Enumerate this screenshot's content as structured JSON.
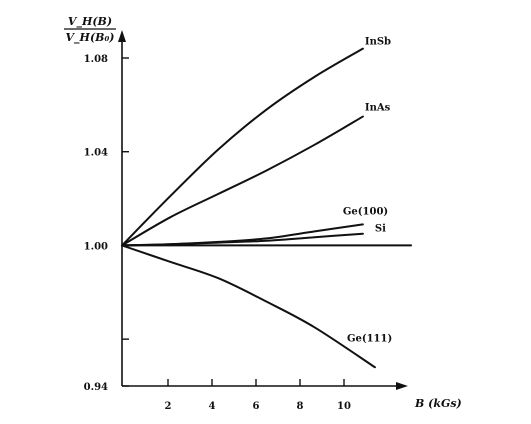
{
  "chart_data": {
    "type": "line",
    "title": "",
    "ylabel_numerator": "V_H(B)",
    "ylabel_denominator": "V_H(B₀)",
    "xlabel": "B (kGs)",
    "xlim": [
      0,
      12
    ],
    "ylim": [
      0.94,
      1.09
    ],
    "x_ticks": [
      2,
      4,
      6,
      8,
      10
    ],
    "x_tick_labels": [
      "2",
      "4",
      "6",
      "8",
      "10"
    ],
    "y_ticks": [
      0.94,
      0.96,
      1.0,
      1.04,
      1.08
    ],
    "y_tick_labels": [
      "0.94",
      "",
      "1.00",
      "1.04",
      "1.08"
    ],
    "grid": false,
    "series": [
      {
        "name": "InSb",
        "x": [
          0,
          2,
          4,
          6,
          8,
          10
        ],
        "y": [
          1.0,
          1.021,
          1.041,
          1.058,
          1.072,
          1.084
        ]
      },
      {
        "name": "InAs",
        "x": [
          0,
          2,
          4,
          6,
          8,
          10
        ],
        "y": [
          1.0,
          1.012,
          1.022,
          1.032,
          1.043,
          1.055
        ]
      },
      {
        "name": "Ge(100)",
        "x": [
          0,
          2,
          4,
          6,
          8,
          10
        ],
        "y": [
          1.0,
          1.0005,
          1.0015,
          1.003,
          1.006,
          1.009
        ]
      },
      {
        "name": "Si",
        "x": [
          0,
          2,
          4,
          6,
          8,
          10
        ],
        "y": [
          1.0,
          1.0005,
          1.0012,
          1.002,
          1.0035,
          1.005
        ]
      },
      {
        "name": "",
        "x": [
          0,
          12
        ],
        "y": [
          1.0,
          1.0
        ]
      },
      {
        "name": "Ge(111)",
        "x": [
          0,
          2,
          4,
          6,
          8,
          10.5
        ],
        "y": [
          1.0,
          0.993,
          0.986,
          0.976,
          0.965,
          0.948
        ]
      }
    ]
  }
}
